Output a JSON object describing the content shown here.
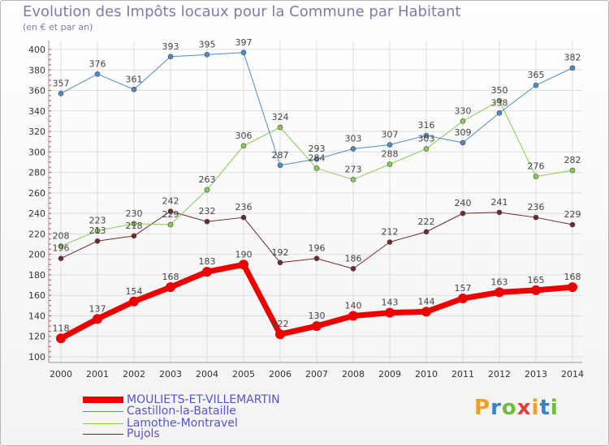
{
  "title": "Evolution des Impôts locaux pour la Commune par Habitant",
  "subtitle": "(en € et par an)",
  "logo": {
    "text": "Proxiti",
    "colors": [
      "#f0a020",
      "#3a7fc8",
      "#6bbf3a",
      "#e0403a"
    ]
  },
  "chart_data": {
    "type": "line",
    "categories": [
      "2000",
      "2001",
      "2002",
      "2003",
      "2004",
      "2005",
      "2006",
      "2007",
      "2008",
      "2009",
      "2010",
      "2011",
      "2012",
      "2013",
      "2014"
    ],
    "ylim": [
      100,
      400
    ],
    "yticks": [
      100,
      120,
      140,
      160,
      180,
      200,
      220,
      240,
      260,
      280,
      300,
      320,
      340,
      360,
      380,
      400
    ],
    "grid": true,
    "legend_position": "bottom-left",
    "series": [
      {
        "name": "MOULIETS-ET-VILLEMARTIN",
        "color": "#ee0000",
        "labels": "#555555",
        "width": 7,
        "values": [
          118,
          137,
          154,
          168,
          183,
          190,
          122,
          130,
          140,
          143,
          144,
          157,
          163,
          165,
          168
        ]
      },
      {
        "name": "Castillon-la-Bataille",
        "color": "#4e8cc8",
        "width": 1,
        "values": [
          357,
          376,
          361,
          393,
          395,
          397,
          287,
          293,
          303,
          307,
          316,
          309,
          338,
          365,
          382
        ]
      },
      {
        "name": "Lamothe-Montravel",
        "color": "#88cc55",
        "width": 1,
        "values": [
          208,
          223,
          230,
          229,
          263,
          306,
          324,
          284,
          273,
          288,
          303,
          330,
          350,
          276,
          282
        ]
      },
      {
        "name": "Pujols",
        "color": "#6e2a2a",
        "width": 1,
        "values": [
          196,
          213,
          218,
          242,
          232,
          236,
          192,
          196,
          186,
          212,
          222,
          240,
          241,
          236,
          229
        ]
      }
    ]
  }
}
